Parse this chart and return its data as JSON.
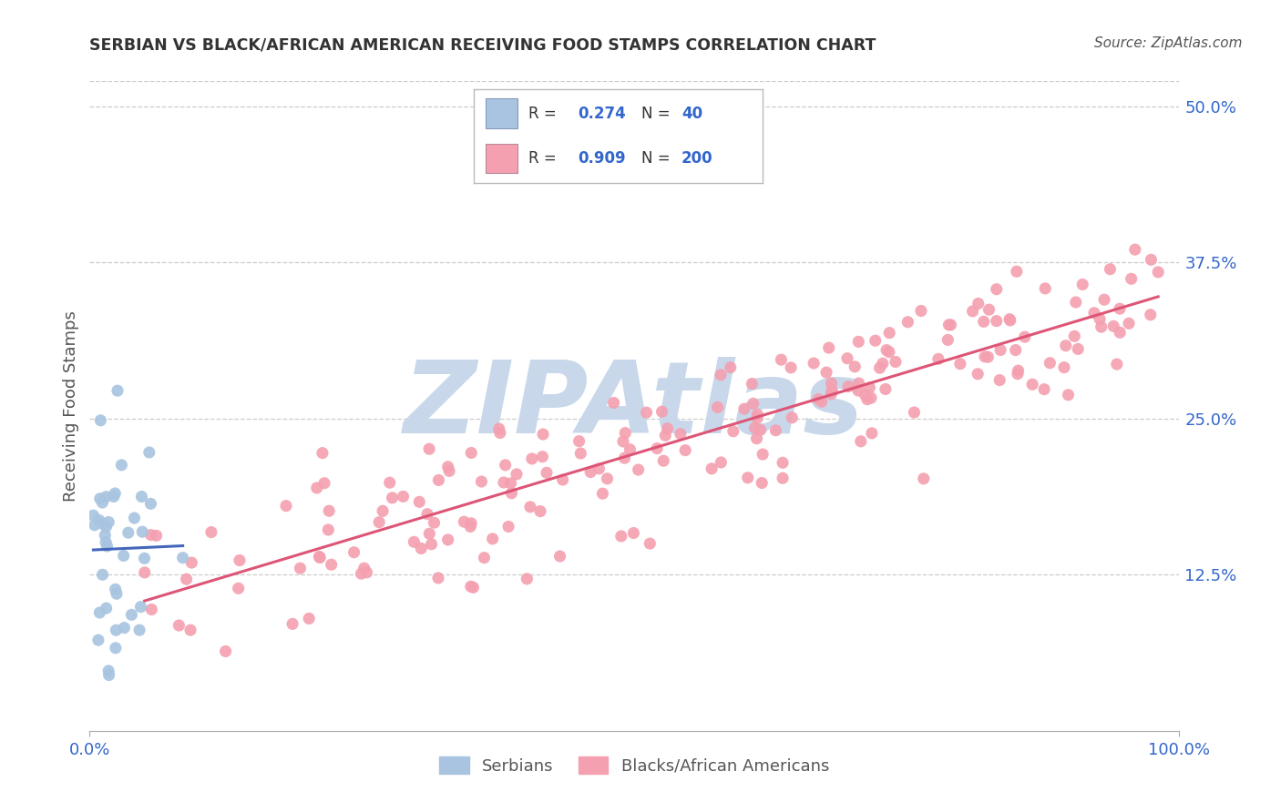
{
  "title": "SERBIAN VS BLACK/AFRICAN AMERICAN RECEIVING FOOD STAMPS CORRELATION CHART",
  "source": "Source: ZipAtlas.com",
  "ylabel": "Receiving Food Stamps",
  "watermark": "ZIPAtlas",
  "xlim": [
    0.0,
    1.0
  ],
  "ylim": [
    0.0,
    0.52
  ],
  "xticks": [
    0.0,
    1.0
  ],
  "xticklabels": [
    "0.0%",
    "100.0%"
  ],
  "yticks": [
    0.125,
    0.25,
    0.375,
    0.5
  ],
  "yticklabels": [
    "12.5%",
    "25.0%",
    "37.5%",
    "50.0%"
  ],
  "serbian_R": 0.274,
  "serbian_N": 40,
  "black_R": 0.909,
  "black_N": 200,
  "serbian_color": "#a8c4e0",
  "black_color": "#f4a0b0",
  "serbian_line_color": "#4466bb",
  "black_line_color": "#dd5577",
  "title_color": "#333333",
  "axis_color": "#555555",
  "tick_color": "#3366cc",
  "grid_color": "#cccccc",
  "background_color": "#ffffff",
  "watermark_color": "#c8d8ea",
  "legend_box_color": "#dddddd",
  "bottom_legend_label1": "Serbians",
  "bottom_legend_label2": "Blacks/African Americans"
}
